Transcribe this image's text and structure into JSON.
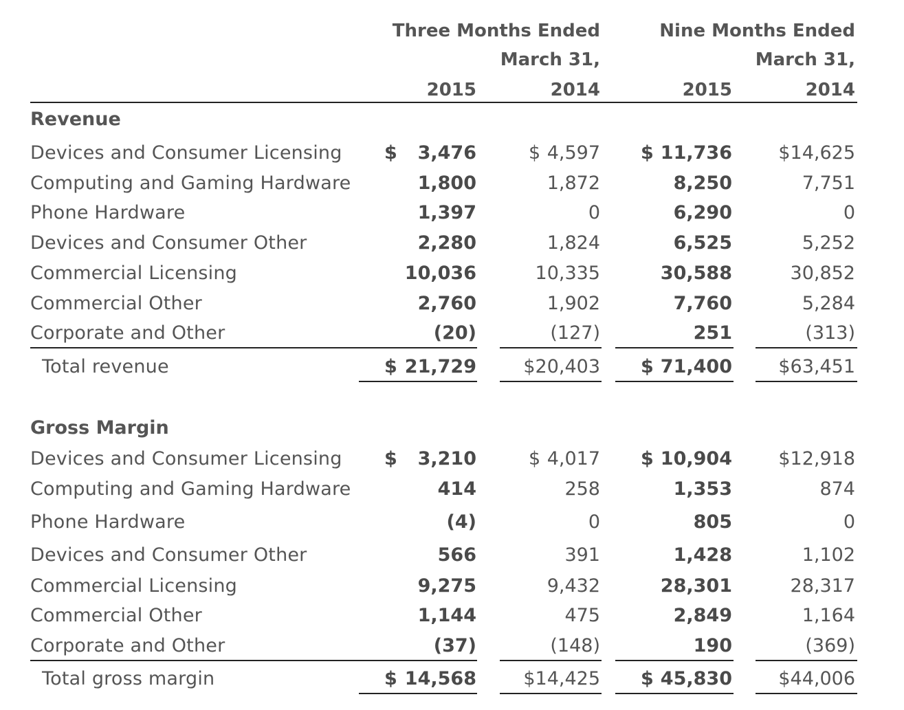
{
  "header": {
    "group1_line1": "Three Months Ended",
    "group1_line2": "March 31,",
    "group2_line1": "Nine Months Ended",
    "group2_line2": "March 31,",
    "years": [
      "2015",
      "2014",
      "2015",
      "2014"
    ]
  },
  "revenue": {
    "title": "Revenue",
    "rows": [
      {
        "label": "Devices and Consumer Licensing",
        "values": [
          "3,476",
          "4,597",
          "11,736",
          "14,625"
        ]
      },
      {
        "label": "Computing and Gaming Hardware",
        "values": [
          "1,800",
          "1,872",
          "8,250",
          "7,751"
        ]
      },
      {
        "label": "Phone Hardware",
        "values": [
          "1,397",
          "0",
          "6,290",
          "0"
        ]
      },
      {
        "label": "Devices and Consumer Other",
        "values": [
          "2,280",
          "1,824",
          "6,525",
          "5,252"
        ]
      },
      {
        "label": "Commercial Licensing",
        "values": [
          "10,036",
          "10,335",
          "30,588",
          "30,852"
        ]
      },
      {
        "label": "Commercial Other",
        "values": [
          "2,760",
          "1,902",
          "7,760",
          "5,284"
        ]
      },
      {
        "label": "Corporate and Other",
        "values": [
          "(20)",
          "(127)",
          "251",
          "(313)"
        ]
      }
    ],
    "total": {
      "label": "Total revenue",
      "values": [
        "21,729",
        "$20,403",
        "71,400",
        "$63,451"
      ]
    }
  },
  "gross_margin": {
    "title": "Gross Margin",
    "rows": [
      {
        "label": "Devices and Consumer Licensing",
        "values": [
          "3,210",
          "4,017",
          "10,904",
          "$12,918"
        ]
      },
      {
        "label": "Computing and Gaming Hardware",
        "values": [
          "414",
          "258",
          "1,353",
          "874"
        ]
      },
      {
        "label": "Phone Hardware",
        "values": [
          "(4)",
          "0",
          "805",
          "0"
        ]
      },
      {
        "label": "Devices and Consumer Other",
        "values": [
          "566",
          "391",
          "1,428",
          "1,102"
        ]
      },
      {
        "label": "Commercial Licensing",
        "values": [
          "9,275",
          "9,432",
          "28,301",
          "28,317"
        ]
      },
      {
        "label": "Commercial Other",
        "values": [
          "1,144",
          "475",
          "2,849",
          "1,164"
        ]
      },
      {
        "label": "Corporate and Other",
        "values": [
          "(37)",
          "(148)",
          "190",
          "(369)"
        ]
      }
    ],
    "total": {
      "label": "Total gross margin",
      "values": [
        "14,568",
        "$14,425",
        "45,830",
        "$44,006"
      ]
    }
  },
  "currency_symbol": "$",
  "revenue_first_row_c1_prefix": "$ 4,597",
  "revenue_first_row_c3": "$14,625",
  "gm_first_row_c1_prefix": "$ 4,017"
}
